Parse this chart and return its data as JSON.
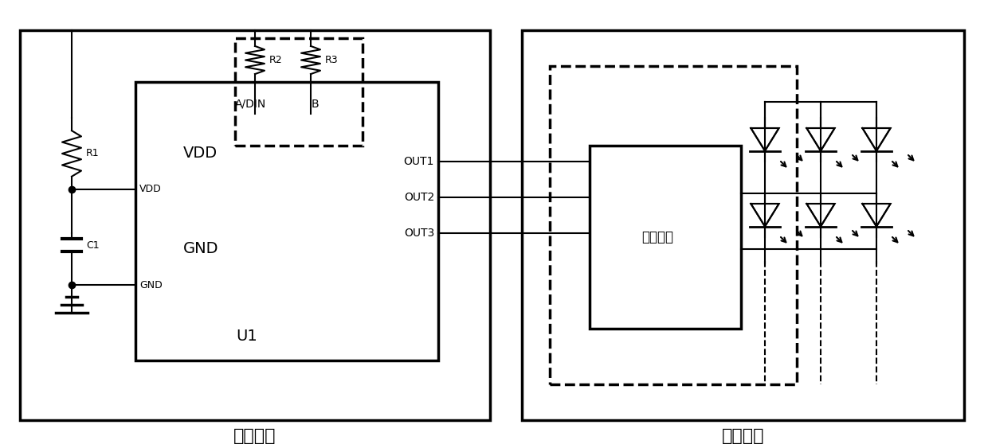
{
  "fig_width": 12.4,
  "fig_height": 5.63,
  "bg_color": "#ffffff",
  "line_color": "#000000",
  "title_decode": "解码模块",
  "title_display": "显示模块",
  "label_VDD": "VDD",
  "label_GND": "GND",
  "label_U1": "U1",
  "label_R1": "R1",
  "label_R2": "R2",
  "label_R3": "R3",
  "label_C1": "C1",
  "label_ADIN": "A/DIN",
  "label_B": "B",
  "label_OUT1": "OUT1",
  "label_OUT2": "OUT2",
  "label_OUT3": "OUT3",
  "label_drive": "驱动单元"
}
